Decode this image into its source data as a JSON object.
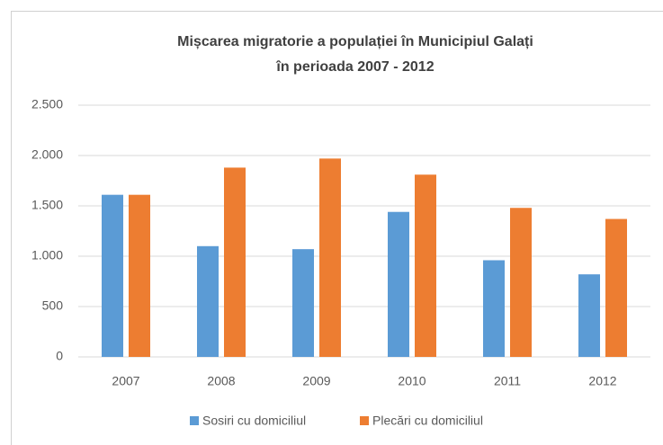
{
  "chart_data": {
    "type": "bar",
    "title": [
      "Mișcarea migratorie a populației în Municipiul Galați",
      "în perioada 2007 - 2012"
    ],
    "categories": [
      "2007",
      "2008",
      "2009",
      "2010",
      "2011",
      "2012"
    ],
    "series": [
      {
        "name": "Sosiri cu domiciliul",
        "color": "#5b9bd5",
        "values": [
          1610,
          1100,
          1070,
          1440,
          960,
          820
        ]
      },
      {
        "name": "Plecări cu domiciliul",
        "color": "#ed7d31",
        "values": [
          1610,
          1880,
          1970,
          1810,
          1480,
          1370
        ]
      }
    ],
    "ylim": [
      0,
      2500
    ],
    "yticks": [
      0,
      500,
      {
        "value": 1000,
        "label": "1.000"
      },
      {
        "value": 1500,
        "label": "1.500"
      },
      {
        "value": 2000,
        "label": "2.000"
      },
      {
        "value": 2500,
        "label": "2.500"
      }
    ],
    "grid": true,
    "legend": "bottom"
  }
}
